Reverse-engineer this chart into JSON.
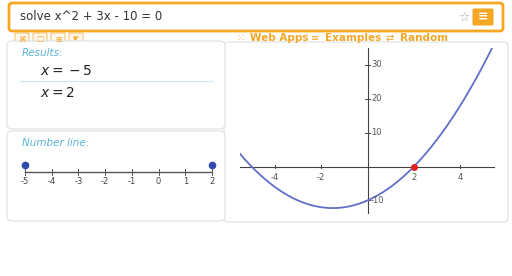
{
  "bg_color": "#f0f0f0",
  "card_color": "#ffffff",
  "search_box_text": "solve x^2 + 3x - 10 = 0",
  "search_box_border": "#f5a623",
  "search_box_bg": "#ffffff",
  "toolbar_icons_color": "#f5a623",
  "nav_items": [
    "Web Apps",
    "Examples",
    "Random"
  ],
  "nav_color": "#f5a623",
  "results_label": "Results:",
  "results_label_color": "#5ab4d6",
  "result1": "x = -5",
  "result2": "x = 2",
  "results_text_color": "#222222",
  "numberline_label": "Number line:",
  "numberline_label_color": "#5ab4d6",
  "numberline_ticks": [
    -5,
    -4,
    -3,
    -2,
    -1,
    0,
    1,
    2
  ],
  "numberline_dots": [
    -5,
    2
  ],
  "dot_color": "#2e4aad",
  "curve_color": "#6070c8",
  "graph_xlim": [
    -5.5,
    5.5
  ],
  "graph_ylim": [
    -14,
    35
  ],
  "graph_xticks": [
    -4,
    -2,
    2,
    4
  ],
  "graph_yticks": [
    -10,
    10,
    20,
    30
  ],
  "red_dot_color": "#dd2222",
  "axis_color": "#444444",
  "graph_bg": "#ffffff",
  "separator_color": "#c8e8f4",
  "outer_border_color": "#dddddd",
  "graph_border_color": "#dddddd"
}
